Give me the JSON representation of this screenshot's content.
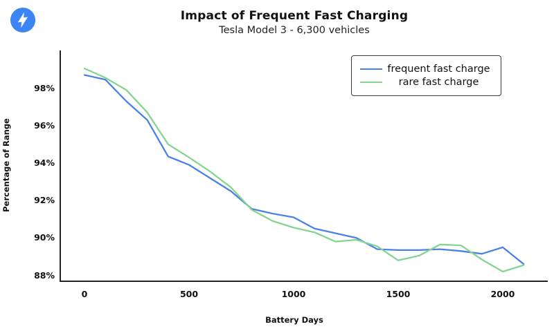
{
  "page": {
    "background": "#ffffff"
  },
  "header": {
    "icon": "lightning-bolt",
    "icon_color": "#3d84f5"
  },
  "chart_data": {
    "type": "line",
    "title": "Impact of Frequent Fast Charging",
    "subtitle": "Tesla Model 3 - 6,300 vehicles",
    "xlabel": "Battery Days",
    "ylabel": "Percentage of Range",
    "x_ticks": [
      0,
      500,
      1000,
      1500,
      2000
    ],
    "y_ticks": [
      "98%",
      "96%",
      "94%",
      "92%",
      "90%",
      "88%"
    ],
    "y_tick_values": [
      98,
      96,
      94,
      92,
      90,
      88
    ],
    "xlim": [
      -116,
      2212
    ],
    "ylim": [
      87.7,
      100.0
    ],
    "grid": false,
    "legend_position": "top-right",
    "x": [
      0,
      100,
      200,
      300,
      400,
      500,
      600,
      700,
      800,
      900,
      1000,
      1100,
      1200,
      1300,
      1400,
      1500,
      1600,
      1700,
      1800,
      1900,
      2000,
      2100
    ],
    "series": [
      {
        "name": "frequent fast charge",
        "color": "#4a80e8",
        "values": [
          98.7,
          98.45,
          97.3,
          96.3,
          94.35,
          93.9,
          93.2,
          92.5,
          91.55,
          91.3,
          91.1,
          90.5,
          90.25,
          90.0,
          89.4,
          89.35,
          89.35,
          89.4,
          89.3,
          89.15,
          89.5,
          88.6
        ]
      },
      {
        "name": "rare fast charge",
        "color": "#85d48f",
        "values": [
          99.05,
          98.55,
          97.9,
          96.7,
          95.0,
          94.3,
          93.55,
          92.7,
          91.5,
          90.9,
          90.55,
          90.3,
          89.8,
          89.9,
          89.55,
          88.8,
          89.05,
          89.65,
          89.6,
          88.85,
          88.2,
          88.55
        ]
      }
    ],
    "spine_color": "#222222",
    "text_color": "#111111"
  }
}
